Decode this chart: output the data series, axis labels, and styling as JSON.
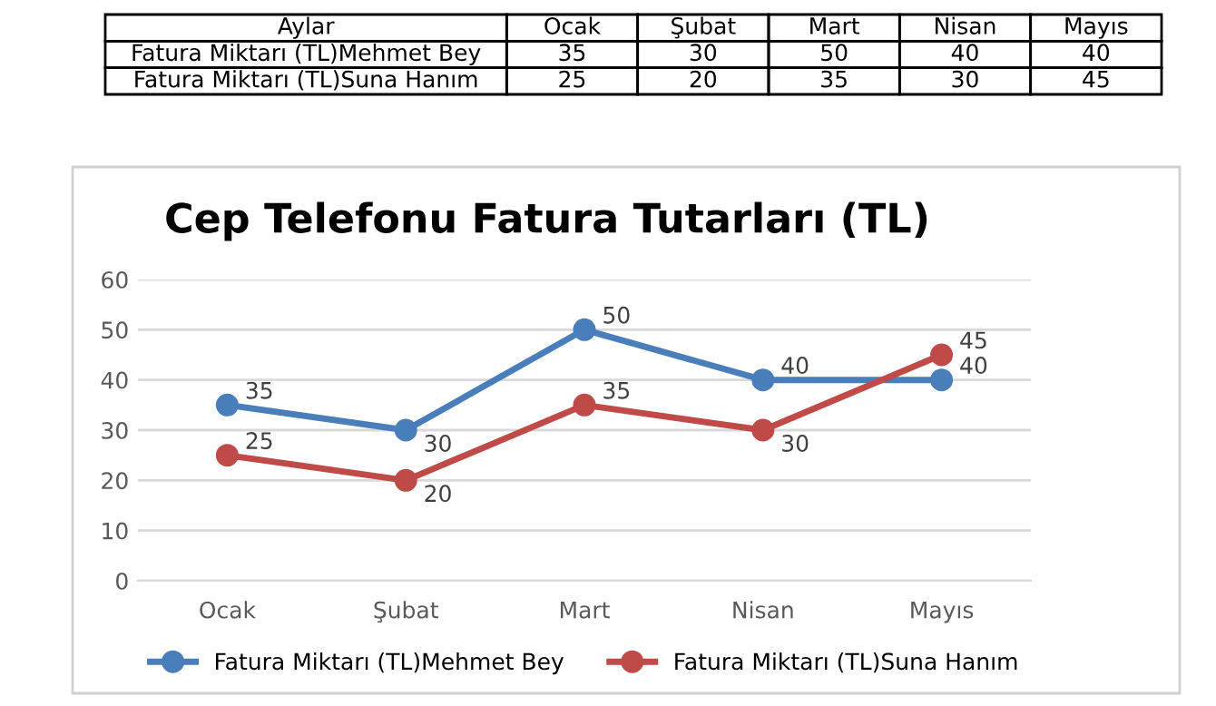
{
  "chart_data": [
    {
      "type": "other",
      "y_categories": [
        "Aylar"
      ],
      "categories": [
        "Ocak",
        "Şubat",
        "Mart",
        "Nisan",
        "Mayıs"
      ],
      "series": [
        {
          "name": "Fatura Miktarı (TL)Mehmet Bey",
          "values": [
            35,
            30,
            50,
            40,
            40
          ]
        },
        {
          "name": "Fatura Miktarı (TL)Suna Hanım",
          "values": [
            25,
            20,
            35,
            30,
            45
          ]
        }
      ],
      "data_labels": true
    },
    {
      "type": "line",
      "title": "Cep Telefonu Fatura Tutarları (TL)",
      "categories": [
        "Ocak",
        "Şubat",
        "Mart",
        "Nisan",
        "Mayıs"
      ],
      "series": [
        {
          "name": "Fatura Miktarı (TL)Mehmet Bey",
          "color": "#4a7ebb",
          "values": [
            35,
            30,
            50,
            40,
            40
          ]
        },
        {
          "name": "Fatura Miktarı (TL)Suna Hanım",
          "color": "#be4b48",
          "values": [
            25,
            20,
            35,
            30,
            45
          ]
        }
      ],
      "ylim": [
        0,
        60
      ],
      "yticks": [
        0,
        10,
        20,
        30,
        40,
        50,
        60
      ],
      "grid": "y",
      "legend": "bottom",
      "marker": "circle",
      "line_style": "solid",
      "data_labels": true
    }
  ]
}
